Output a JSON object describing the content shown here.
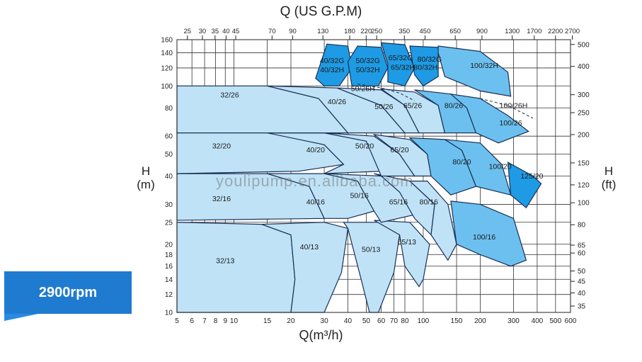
{
  "chart_data": {
    "type": "area",
    "top_axis_title": "Q (US G.P.M)",
    "bottom_axis_title": "Q(m³/h)",
    "left_axis_title": [
      "H",
      "(m)"
    ],
    "right_axis_title": [
      "H",
      "(ft)"
    ],
    "speed_label": "2900rpm",
    "watermark": "youlipump.en.alibaba.com",
    "bottom_ticks": [
      "5",
      "6",
      "7",
      "8",
      "9",
      "10",
      "15",
      "20",
      "30",
      "40",
      "50",
      "60",
      "70",
      "80",
      "100",
      "150",
      "200",
      "300",
      "400",
      "500",
      "600"
    ],
    "bottom_tick_values": [
      5,
      6,
      7,
      8,
      9,
      10,
      15,
      20,
      30,
      40,
      50,
      60,
      70,
      80,
      100,
      150,
      200,
      300,
      400,
      500,
      600
    ],
    "top_ticks": [
      "25",
      "30",
      "35",
      "40",
      "45",
      "70",
      "90",
      "130",
      "180",
      "220",
      "250",
      "350",
      "450",
      "650",
      "900",
      "1300",
      "1700",
      "2200",
      "2700"
    ],
    "left_ticks": [
      "10",
      "12",
      "14",
      "16",
      "18",
      "20",
      "25",
      "30",
      "40",
      "50",
      "60",
      "80",
      "100",
      "120",
      "140",
      "160"
    ],
    "left_tick_values": [
      10,
      12,
      14,
      16,
      18,
      20,
      25,
      30,
      40,
      50,
      60,
      80,
      100,
      120,
      140,
      160
    ],
    "right_ticks": [
      "500",
      "400",
      "300",
      "250",
      "200",
      "150",
      "120",
      "100",
      "80",
      "65",
      "60",
      "50",
      "45",
      "40",
      "35"
    ],
    "x_range": [
      5,
      600
    ],
    "y_range": [
      10,
      160
    ],
    "x_scale": "log",
    "y_scale": "log",
    "grid": true,
    "regions": [
      {
        "label": "32/13",
        "color": "light",
        "poly": [
          [
            5,
            25
          ],
          [
            14,
            24.5
          ],
          [
            20,
            22
          ],
          [
            21,
            14
          ],
          [
            20,
            10
          ],
          [
            5,
            10
          ]
        ]
      },
      {
        "label": "40/13",
        "color": "light",
        "poly": [
          [
            14,
            24.5
          ],
          [
            30,
            25
          ],
          [
            40,
            23.5
          ],
          [
            37,
            15
          ],
          [
            30,
            10
          ],
          [
            20,
            10
          ],
          [
            21,
            14
          ],
          [
            20,
            22
          ]
        ]
      },
      {
        "label": "50/13",
        "color": "light",
        "poly": [
          [
            38,
            25
          ],
          [
            60,
            25
          ],
          [
            75,
            22
          ],
          [
            70,
            15
          ],
          [
            58,
            10
          ],
          [
            52,
            10
          ],
          [
            47,
            14
          ],
          [
            40,
            23.5
          ]
        ]
      },
      {
        "label": "65/13",
        "color": "light",
        "poly": [
          [
            55,
            25.5
          ],
          [
            85,
            25
          ],
          [
            108,
            20
          ],
          [
            100,
            14
          ],
          [
            95,
            13
          ],
          [
            80,
            16
          ],
          [
            75,
            22
          ]
        ]
      },
      {
        "label": "32/16",
        "color": "light",
        "poly": [
          [
            5,
            41
          ],
          [
            15,
            41
          ],
          [
            25,
            36
          ],
          [
            30,
            26
          ],
          [
            5,
            25.5
          ]
        ]
      },
      {
        "label": "40/16",
        "color": "light",
        "poly": [
          [
            15,
            41
          ],
          [
            30,
            41
          ],
          [
            45,
            38
          ],
          [
            55,
            28
          ],
          [
            40,
            26
          ],
          [
            30,
            26
          ],
          [
            25,
            36
          ]
        ]
      },
      {
        "label": "50/16",
        "color": "light",
        "poly": [
          [
            30,
            41
          ],
          [
            60,
            40
          ],
          [
            75,
            34
          ],
          [
            90,
            27
          ],
          [
            60,
            25
          ],
          [
            55,
            28
          ],
          [
            45,
            38
          ]
        ]
      },
      {
        "label": "65/16",
        "color": "light",
        "poly": [
          [
            55,
            41
          ],
          [
            85,
            38
          ],
          [
            115,
            30
          ],
          [
            110,
            22
          ],
          [
            90,
            26
          ],
          [
            75,
            34
          ],
          [
            60,
            40
          ]
        ]
      },
      {
        "label": "80/16",
        "color": "light",
        "poly": [
          [
            85,
            38
          ],
          [
            105,
            38
          ],
          [
            135,
            30
          ],
          [
            150,
            20
          ],
          [
            135,
            17
          ],
          [
            110,
            22
          ],
          [
            115,
            30
          ]
        ]
      },
      {
        "label": "100/16",
        "color": "mid",
        "poly": [
          [
            140,
            31
          ],
          [
            200,
            30
          ],
          [
            300,
            26
          ],
          [
            350,
            17
          ],
          [
            290,
            16
          ],
          [
            200,
            18
          ],
          [
            150,
            20
          ]
        ]
      },
      {
        "label": "32/20",
        "color": "light",
        "poly": [
          [
            5,
            63
          ],
          [
            15,
            63
          ],
          [
            30,
            55
          ],
          [
            38,
            45
          ],
          [
            22,
            42
          ],
          [
            5,
            41
          ]
        ]
      },
      {
        "label": "40/20",
        "color": "light",
        "poly": [
          [
            15,
            62
          ],
          [
            35,
            62
          ],
          [
            50,
            57
          ],
          [
            60,
            42
          ],
          [
            30,
            41
          ],
          [
            38,
            45
          ],
          [
            30,
            55
          ]
        ]
      },
      {
        "label": "50/20",
        "color": "light",
        "poly": [
          [
            30,
            62
          ],
          [
            55,
            60
          ],
          [
            75,
            50
          ],
          [
            90,
            40
          ],
          [
            60,
            40
          ],
          [
            50,
            57
          ]
        ]
      },
      {
        "label": "65/20",
        "color": "light",
        "poly": [
          [
            55,
            61
          ],
          [
            85,
            58
          ],
          [
            105,
            50
          ],
          [
            110,
            40
          ],
          [
            90,
            40
          ],
          [
            75,
            50
          ]
        ]
      },
      {
        "label": "80/20",
        "color": "mid",
        "poly": [
          [
            85,
            59
          ],
          [
            130,
            58
          ],
          [
            160,
            52
          ],
          [
            190,
            36
          ],
          [
            140,
            33
          ],
          [
            110,
            40
          ],
          [
            105,
            50
          ]
        ]
      },
      {
        "label": "100/20",
        "color": "mid",
        "poly": [
          [
            130,
            58
          ],
          [
            200,
            56
          ],
          [
            260,
            45
          ],
          [
            290,
            33
          ],
          [
            190,
            36
          ],
          [
            160,
            52
          ]
        ]
      },
      {
        "label": "125/20",
        "color": "dark",
        "poly": [
          [
            280,
            46
          ],
          [
            380,
            40
          ],
          [
            420,
            37
          ],
          [
            350,
            29
          ],
          [
            290,
            33
          ]
        ]
      },
      {
        "label": "32/26",
        "color": "light",
        "poly": [
          [
            5,
            100
          ],
          [
            15,
            100
          ],
          [
            28,
            88
          ],
          [
            40,
            62
          ],
          [
            5,
            62
          ]
        ]
      },
      {
        "label": "40/26",
        "color": "light",
        "poly": [
          [
            15,
            100
          ],
          [
            35,
            98
          ],
          [
            60,
            82
          ],
          [
            80,
            62
          ],
          [
            40,
            62
          ],
          [
            28,
            88
          ]
        ]
      },
      {
        "label": "50/26",
        "color": "light",
        "poly": [
          [
            35,
            98
          ],
          [
            60,
            96
          ],
          [
            80,
            82
          ],
          [
            95,
            62
          ],
          [
            80,
            62
          ],
          [
            60,
            82
          ]
        ]
      },
      {
        "label": "65/26",
        "color": "light",
        "poly": [
          [
            60,
            97
          ],
          [
            90,
            94
          ],
          [
            120,
            82
          ],
          [
            130,
            62
          ],
          [
            95,
            62
          ],
          [
            80,
            82
          ]
        ]
      },
      {
        "label": "80/26",
        "color": "mid",
        "poly": [
          [
            90,
            96
          ],
          [
            140,
            92
          ],
          [
            170,
            80
          ],
          [
            190,
            62
          ],
          [
            130,
            62
          ],
          [
            120,
            82
          ]
        ]
      },
      {
        "label": "100/26",
        "color": "mid",
        "poly": [
          [
            140,
            92
          ],
          [
            200,
            88
          ],
          [
            280,
            74
          ],
          [
            360,
            63
          ],
          [
            250,
            56
          ],
          [
            190,
            62
          ],
          [
            170,
            80
          ]
        ]
      },
      {
        "label": "40/32G",
        "color": "dark",
        "poly": [
          [
            31,
            153
          ],
          [
            40,
            150
          ],
          [
            42,
            120
          ],
          [
            36,
            100
          ],
          [
            30,
            100
          ],
          [
            27,
            108
          ]
        ]
      },
      {
        "label": "50/32G",
        "color": "dark",
        "poly": [
          [
            45,
            150
          ],
          [
            60,
            148
          ],
          [
            65,
            120
          ],
          [
            58,
            100
          ],
          [
            42,
            100
          ],
          [
            40,
            128
          ]
        ]
      },
      {
        "label": "65/32G",
        "color": "dark",
        "poly": [
          [
            60,
            155
          ],
          [
            80,
            152
          ],
          [
            90,
            120
          ],
          [
            80,
            100
          ],
          [
            65,
            104
          ],
          [
            65,
            125
          ]
        ]
      },
      {
        "label": "80/32G",
        "color": "dark",
        "poly": [
          [
            85,
            150
          ],
          [
            120,
            148
          ],
          [
            120,
            110
          ],
          [
            100,
            100
          ],
          [
            90,
            112
          ]
        ]
      },
      {
        "label": "100/32H",
        "color": "mid",
        "poly": [
          [
            120,
            150
          ],
          [
            200,
            142
          ],
          [
            280,
            115
          ],
          [
            290,
            90
          ],
          [
            200,
            95
          ],
          [
            130,
            110
          ],
          [
            120,
            140
          ]
        ]
      }
    ],
    "region_labels": [
      {
        "text": "32/13",
        "x": 9,
        "y": 16.5
      },
      {
        "text": "40/13",
        "x": 25,
        "y": 19
      },
      {
        "text": "50/13",
        "x": 53,
        "y": 18.5
      },
      {
        "text": "65/13",
        "x": 82,
        "y": 20
      },
      {
        "text": "32/16",
        "x": 8.6,
        "y": 31
      },
      {
        "text": "40/16",
        "x": 27,
        "y": 30
      },
      {
        "text": "50/16",
        "x": 46,
        "y": 32
      },
      {
        "text": "65/16",
        "x": 74,
        "y": 30
      },
      {
        "text": "80/16",
        "x": 107,
        "y": 30
      },
      {
        "text": "100/16",
        "x": 210,
        "y": 21
      },
      {
        "text": "32/20",
        "x": 8.6,
        "y": 53
      },
      {
        "text": "40/20",
        "x": 27,
        "y": 51
      },
      {
        "text": "50/20",
        "x": 49,
        "y": 53
      },
      {
        "text": "65/20",
        "x": 75,
        "y": 51
      },
      {
        "text": "80/20",
        "x": 160,
        "y": 45
      },
      {
        "text": "100/20",
        "x": 255,
        "y": 43
      },
      {
        "text": "125/20",
        "x": 375,
        "y": 39
      },
      {
        "text": "32/26",
        "x": 9.5,
        "y": 89
      },
      {
        "text": "40/26",
        "x": 35,
        "y": 83
      },
      {
        "text": "50/26",
        "x": 62,
        "y": 79
      },
      {
        "text": "65/26",
        "x": 88,
        "y": 80
      },
      {
        "text": "80/26",
        "x": 145,
        "y": 80
      },
      {
        "text": "100/26",
        "x": 290,
        "y": 67
      },
      {
        "text": "100/26H",
        "x": 300,
        "y": 80
      },
      {
        "text": "50/26H",
        "x": 48,
        "y": 95
      },
      {
        "text": "40/32G",
        "x": 33,
        "y": 126
      },
      {
        "text": "40/32H",
        "x": 33,
        "y": 115
      },
      {
        "text": "50/32G",
        "x": 51,
        "y": 126
      },
      {
        "text": "50/32H",
        "x": 51,
        "y": 115
      },
      {
        "text": "65/32G",
        "x": 76,
        "y": 130
      },
      {
        "text": "65/32H",
        "x": 78,
        "y": 118
      },
      {
        "text": "80/32G",
        "x": 108,
        "y": 128
      },
      {
        "text": "80/32H",
        "x": 103,
        "y": 118
      },
      {
        "text": "100/32H",
        "x": 210,
        "y": 120
      }
    ]
  }
}
